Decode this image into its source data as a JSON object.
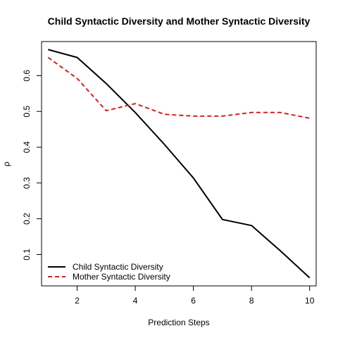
{
  "chart_data": {
    "type": "line",
    "title": "Child Syntactic Diversity and Mother Syntactic Diversity",
    "xlabel": "Prediction Steps",
    "ylabel": "ρ",
    "x": [
      1,
      2,
      3,
      4,
      5,
      6,
      7,
      8,
      9,
      10
    ],
    "xlim": [
      0.775,
      10.225
    ],
    "ylim": [
      0.0123,
      0.6954
    ],
    "xticks": [
      2,
      4,
      6,
      8,
      10
    ],
    "yticks": [
      0.1,
      0.2,
      0.3,
      0.4,
      0.5,
      0.6
    ],
    "xtick_labels": [
      "2",
      "4",
      "6",
      "8",
      "10"
    ],
    "ytick_labels": [
      "0.1",
      "0.2",
      "0.3",
      "0.4",
      "0.5",
      "0.6"
    ],
    "grid": false,
    "legend_position": "bottom-left",
    "series": [
      {
        "name": "Child Syntactic Diversity",
        "values": [
          0.673,
          0.651,
          0.578,
          0.497,
          0.408,
          0.314,
          0.198,
          0.181,
          0.11,
          0.035
        ],
        "color": "#000000",
        "style": "solid"
      },
      {
        "name": "Mother Syntactic Diversity",
        "values": [
          0.651,
          0.592,
          0.502,
          0.522,
          0.492,
          0.487,
          0.487,
          0.497,
          0.497,
          0.481
        ],
        "color": "#d62020",
        "style": "dashed"
      }
    ]
  }
}
